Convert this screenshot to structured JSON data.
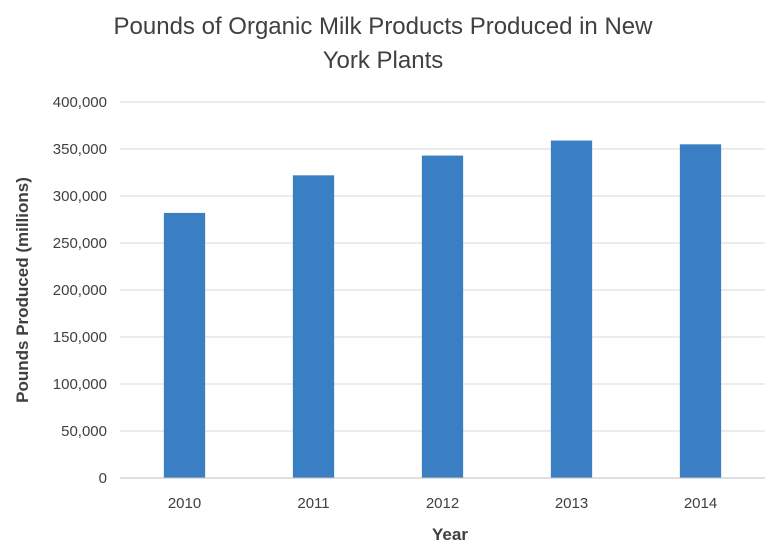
{
  "chart_data": {
    "type": "bar",
    "title_lines": [
      "Pounds of Organic Milk Products Produced in New",
      "York Plants"
    ],
    "xlabel": "Year",
    "ylabel": "Pounds Produced (millions)",
    "categories": [
      "2010",
      "2011",
      "2012",
      "2013",
      "2014"
    ],
    "values": [
      282000,
      322000,
      343000,
      359000,
      355000
    ],
    "ylim": [
      0,
      400000
    ],
    "ytick_labels": [
      "0",
      "50,000",
      "100,000",
      "150,000",
      "200,000",
      "250,000",
      "300,000",
      "350,000",
      "400,000"
    ],
    "ytick_values": [
      0,
      50000,
      100000,
      150000,
      200000,
      250000,
      300000,
      350000,
      400000
    ],
    "grid": true,
    "legend": "none",
    "bar_color": "#3a7fc4"
  }
}
